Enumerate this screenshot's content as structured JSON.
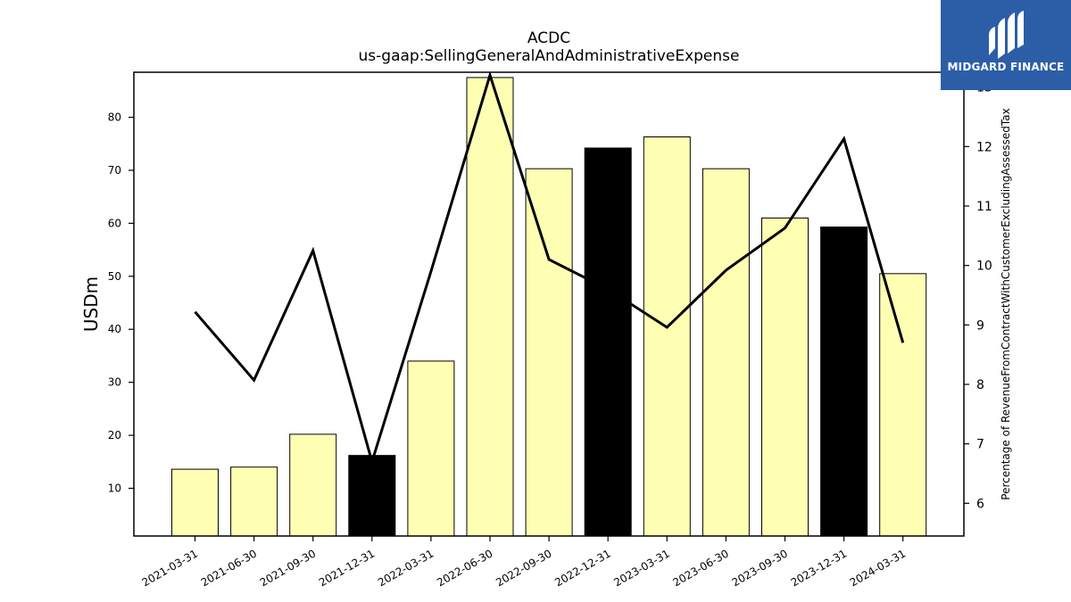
{
  "chart_data": {
    "type": "bar",
    "title": "ACDC",
    "subtitle": "us-gaap:SellingGeneralAndAdministrativeExpense",
    "ylabel": "USDm",
    "y2label": "Percentage of RevenueFromContractWithCustomerExcludingAssessedTax",
    "categories": [
      "2021-03-31",
      "2021-06-30",
      "2021-09-30",
      "2021-12-31",
      "2022-03-31",
      "2022-06-30",
      "2022-09-30",
      "2022-12-31",
      "2023-03-31",
      "2023-06-30",
      "2023-09-30",
      "2023-12-31",
      "2024-03-31"
    ],
    "bar_values": [
      13.6,
      14.0,
      20.2,
      16.2,
      34.0,
      87.5,
      70.3,
      74.2,
      76.3,
      70.3,
      61.0,
      59.3,
      50.5
    ],
    "bar_colors": [
      "#ffffb3",
      "#ffffb3",
      "#ffffb3",
      "#000000",
      "#ffffb3",
      "#ffffb3",
      "#ffffb3",
      "#000000",
      "#ffffb3",
      "#ffffb3",
      "#ffffb3",
      "#000000",
      "#ffffb3"
    ],
    "line_values": [
      9.22,
      8.07,
      10.25,
      6.7,
      9.9,
      13.2,
      10.1,
      9.6,
      8.96,
      9.92,
      10.63,
      12.13,
      8.7
    ],
    "line_color": "#000000",
    "ylim": [
      1,
      88.5
    ],
    "y2lim": [
      5.45,
      13.25
    ],
    "yticks": [
      10,
      20,
      30,
      40,
      50,
      60,
      70,
      80
    ],
    "y2ticks": [
      6,
      7,
      8,
      9,
      10,
      11,
      12,
      13
    ],
    "grid": false,
    "legend": "none"
  },
  "logo": {
    "text": "MIDGARD FINANCE",
    "icon": "midgard-logo-icon",
    "background": "#2c5ea8"
  }
}
